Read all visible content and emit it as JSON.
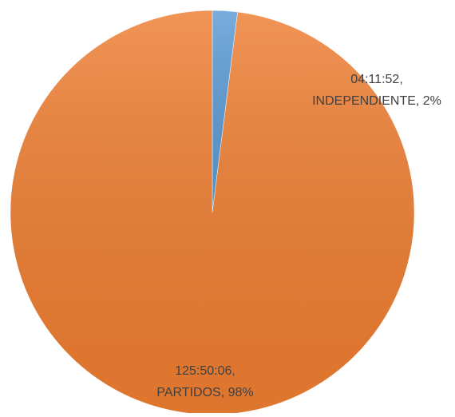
{
  "chart_data": {
    "type": "pie",
    "categories": [
      "INDEPENDIENTE",
      "PARTIDOS"
    ],
    "values": [
      2,
      98
    ],
    "value_labels": [
      "04:11:52, INDEPENDIENTE, 2%",
      "125:50:06, PARTIDOS, 98%"
    ],
    "colors": [
      "#5b9bd5",
      "#ed7d31"
    ]
  }
}
